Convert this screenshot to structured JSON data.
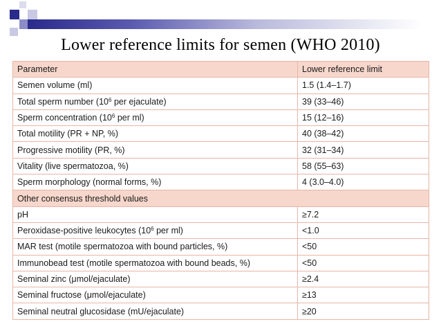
{
  "title": "Lower reference limits for semen (WHO 2010)",
  "table": {
    "headers": [
      "Parameter",
      "Lower reference limit"
    ],
    "rows": [
      {
        "parameter": "Semen volume (ml)",
        "limit": "1.5 (1.4–1.7)"
      },
      {
        "parameter_pre": "Total sperm number (10",
        "parameter_sup": "6",
        "parameter_post": " per ejaculate)",
        "limit": "39 (33–46)"
      },
      {
        "parameter_pre": "Sperm concentration (10",
        "parameter_sup": "6",
        "parameter_post": " per ml)",
        "limit": "15 (12–16)"
      },
      {
        "parameter": "Total motility (PR + NP, %)",
        "limit": "40 (38–42)"
      },
      {
        "parameter": "Progressive motility (PR, %)",
        "limit": "32 (31–34)"
      },
      {
        "parameter": "Vitality (live spermatozoa, %)",
        "limit": "58 (55–63)"
      },
      {
        "parameter": "Sperm morphology (normal forms, %)",
        "limit": "4 (3.0–4.0)"
      }
    ],
    "section_label": "Other consensus threshold values",
    "other_rows": [
      {
        "parameter": "pH",
        "limit": "≥7.2"
      },
      {
        "parameter_pre": "Peroxidase-positive leukocytes (10",
        "parameter_sup": "6",
        "parameter_post": " per ml)",
        "limit": "<1.0"
      },
      {
        "parameter": "MAR test (motile spermatozoa with bound particles, %)",
        "limit": "<50"
      },
      {
        "parameter": "Immunobead test (motile spermatozoa with bound beads, %)",
        "limit": "<50"
      },
      {
        "parameter": "Seminal zinc (μmol/ejaculate)",
        "limit": "≥2.4"
      },
      {
        "parameter": "Seminal fructose (μmol/ejaculate)",
        "limit": "≥13"
      },
      {
        "parameter": "Seminal neutral glucosidase (mU/ejaculate)",
        "limit": "≥20"
      }
    ]
  },
  "colors": {
    "header_fill": "#f7d7cc",
    "border": "#e7b5a6",
    "accent_bar_dark": "#2a2a8c"
  }
}
